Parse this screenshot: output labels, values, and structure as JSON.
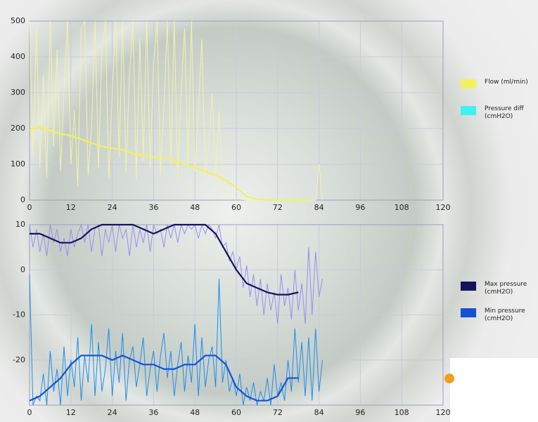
{
  "chart_data": [
    {
      "type": "line",
      "xlim": [
        0,
        120
      ],
      "xticks": [
        0,
        12,
        24,
        36,
        48,
        60,
        72,
        84,
        96,
        108,
        120
      ],
      "ylim": [
        0,
        500
      ],
      "yticks": [
        0,
        100,
        200,
        300,
        400,
        500
      ],
      "grid": true,
      "series": [
        {
          "color": "#f3f3a6",
          "x": [
            0,
            1,
            2,
            3,
            4,
            5,
            6,
            7,
            8,
            9,
            10,
            11,
            12,
            13,
            14,
            15,
            16,
            17,
            18,
            19,
            20,
            21,
            22,
            23,
            24,
            25,
            26,
            27,
            28,
            29,
            30,
            31,
            32,
            33,
            34,
            35,
            36,
            37,
            38,
            39,
            40,
            41,
            42,
            43,
            44,
            45,
            46,
            47,
            48,
            49,
            50,
            51,
            52,
            53,
            54,
            55,
            56,
            57,
            58,
            59,
            60,
            61,
            62,
            63,
            64,
            65,
            66,
            67,
            68,
            69,
            70,
            71,
            72,
            73,
            74,
            75,
            76,
            77,
            78,
            79,
            80,
            81,
            82,
            83,
            84,
            85
          ],
          "values": [
            500,
            120,
            480,
            90,
            350,
            60,
            500,
            150,
            420,
            80,
            300,
            500,
            100,
            250,
            40,
            480,
            500,
            70,
            200,
            500,
            90,
            420,
            500,
            60,
            300,
            500,
            120,
            500,
            80,
            350,
            500,
            60,
            450,
            110,
            500,
            90,
            380,
            500,
            70,
            260,
            500,
            100,
            500,
            60,
            300,
            480,
            90,
            500,
            80,
            250,
            450,
            70,
            150,
            300,
            60,
            250,
            40,
            20,
            10,
            5,
            3,
            2,
            1,
            0,
            0,
            0,
            0,
            0,
            0,
            0,
            0,
            0,
            0,
            0,
            0,
            0,
            0,
            0,
            0,
            0,
            0,
            0,
            0,
            0,
            100,
            0
          ]
        },
        {
          "name": "Flow (ml/min)",
          "color": "#f2f25a",
          "x": [
            0,
            3,
            6,
            9,
            12,
            15,
            18,
            21,
            24,
            27,
            30,
            33,
            36,
            39,
            42,
            45,
            48,
            51,
            54,
            57,
            60,
            63,
            66,
            69,
            72,
            75,
            78,
            81
          ],
          "values": [
            195,
            205,
            195,
            185,
            180,
            170,
            160,
            150,
            145,
            140,
            130,
            125,
            120,
            118,
            110,
            100,
            90,
            80,
            70,
            55,
            35,
            10,
            3,
            0,
            0,
            0,
            0,
            0
          ]
        },
        {
          "name": "Pressure diff (cmH2O)",
          "color": "#3ff2f2",
          "x": [],
          "values": []
        }
      ]
    },
    {
      "type": "line",
      "xlim": [
        0,
        120
      ],
      "xticks": [
        0,
        12,
        24,
        36,
        48,
        60,
        72,
        84,
        96,
        108,
        120
      ],
      "ylim": [
        -30,
        10
      ],
      "yticks": [
        -20,
        -10,
        0,
        10
      ],
      "grid": true,
      "series": [
        {
          "color": "#9b8ef2",
          "x": [
            0,
            1,
            2,
            3,
            4,
            5,
            6,
            7,
            8,
            9,
            10,
            11,
            12,
            13,
            14,
            15,
            16,
            17,
            18,
            19,
            20,
            21,
            22,
            23,
            24,
            25,
            26,
            27,
            28,
            29,
            30,
            31,
            32,
            33,
            34,
            35,
            36,
            37,
            38,
            39,
            40,
            41,
            42,
            43,
            44,
            45,
            46,
            47,
            48,
            49,
            50,
            51,
            52,
            53,
            54,
            55,
            56,
            57,
            58,
            59,
            60,
            61,
            62,
            63,
            64,
            65,
            66,
            67,
            68,
            69,
            70,
            71,
            72,
            73,
            74,
            75,
            76,
            77,
            78,
            79,
            80,
            81,
            82,
            83,
            84,
            85
          ],
          "values": [
            10,
            5,
            9,
            4,
            8,
            3,
            10,
            6,
            9,
            4,
            7,
            3,
            9,
            5,
            8,
            10,
            6,
            10,
            4,
            9,
            10,
            3,
            9,
            6,
            10,
            4,
            10,
            7,
            9,
            3,
            10,
            5,
            9,
            6,
            10,
            4,
            10,
            8,
            9,
            5,
            10,
            7,
            10,
            6,
            10,
            8,
            10,
            9,
            10,
            7,
            10,
            8,
            10,
            9,
            7,
            10,
            5,
            6,
            2,
            4,
            0,
            3,
            -4,
            1,
            -6,
            -1,
            -8,
            -2,
            -10,
            -3,
            -9,
            -5,
            -12,
            -1,
            -8,
            -4,
            -11,
            0,
            -9,
            -3,
            -12,
            5,
            -10,
            4,
            -6,
            -2
          ]
        },
        {
          "color": "#1a8ff0",
          "x": [
            0,
            1,
            2,
            3,
            4,
            5,
            6,
            7,
            8,
            9,
            10,
            11,
            12,
            13,
            14,
            15,
            16,
            17,
            18,
            19,
            20,
            21,
            22,
            23,
            24,
            25,
            26,
            27,
            28,
            29,
            30,
            31,
            32,
            33,
            34,
            35,
            36,
            37,
            38,
            39,
            40,
            41,
            42,
            43,
            44,
            45,
            46,
            47,
            48,
            49,
            50,
            51,
            52,
            53,
            54,
            55,
            56,
            57,
            58,
            59,
            60,
            61,
            62,
            63,
            64,
            65,
            66,
            67,
            68,
            69,
            70,
            71,
            72,
            73,
            74,
            75,
            76,
            77,
            78,
            79,
            80,
            81,
            82,
            83,
            84,
            85
          ],
          "values": [
            -1,
            -30,
            -28,
            -29,
            -23,
            -30,
            -18,
            -27,
            -22,
            -30,
            -17,
            -28,
            -20,
            -26,
            -15,
            -29,
            -19,
            -25,
            -12,
            -28,
            -16,
            -27,
            -22,
            -13,
            -28,
            -18,
            -25,
            -14,
            -29,
            -20,
            -17,
            -26,
            -21,
            -15,
            -28,
            -22,
            -18,
            -27,
            -19,
            -14,
            -24,
            -18,
            -28,
            -21,
            -16,
            -27,
            -19,
            -25,
            -12,
            -28,
            -15,
            -26,
            -20,
            -17,
            -26,
            -2,
            -25,
            -20,
            -27,
            -24,
            -28,
            -23,
            -30,
            -26,
            -29,
            -25,
            -30,
            -27,
            -29,
            -24,
            -30,
            -21,
            -28,
            -25,
            -29,
            -20,
            -27,
            -13,
            -25,
            -16,
            -28,
            -15,
            -29,
            -13,
            -27,
            -20
          ]
        },
        {
          "name": "Max pressure (cmH2O)",
          "color": "#14145e",
          "x": [
            0,
            3,
            6,
            9,
            12,
            15,
            18,
            21,
            24,
            27,
            30,
            33,
            36,
            39,
            42,
            45,
            48,
            51,
            54,
            57,
            60,
            63,
            66,
            69,
            72,
            75,
            78
          ],
          "values": [
            8,
            8,
            7,
            6,
            6,
            7,
            9,
            10,
            10,
            10,
            10,
            9,
            8,
            9,
            10,
            10,
            10,
            10,
            8,
            4,
            0,
            -3,
            -4,
            -5,
            -5.5,
            -5.5,
            -5
          ]
        },
        {
          "name": "Min pressure (cmH2O)",
          "color": "#1352d6",
          "x": [
            0,
            3,
            6,
            9,
            12,
            15,
            18,
            21,
            24,
            27,
            30,
            33,
            36,
            39,
            42,
            45,
            48,
            51,
            54,
            57,
            60,
            63,
            66,
            69,
            72,
            75,
            78
          ],
          "values": [
            -29,
            -28,
            -26,
            -24,
            -21,
            -19,
            -19,
            -19,
            -20,
            -19,
            -20,
            -21,
            -21,
            -22,
            -22,
            -21,
            -21,
            -19,
            -19,
            -21,
            -26,
            -28,
            -29,
            -29,
            -28,
            -24,
            -24
          ]
        }
      ]
    }
  ]
}
